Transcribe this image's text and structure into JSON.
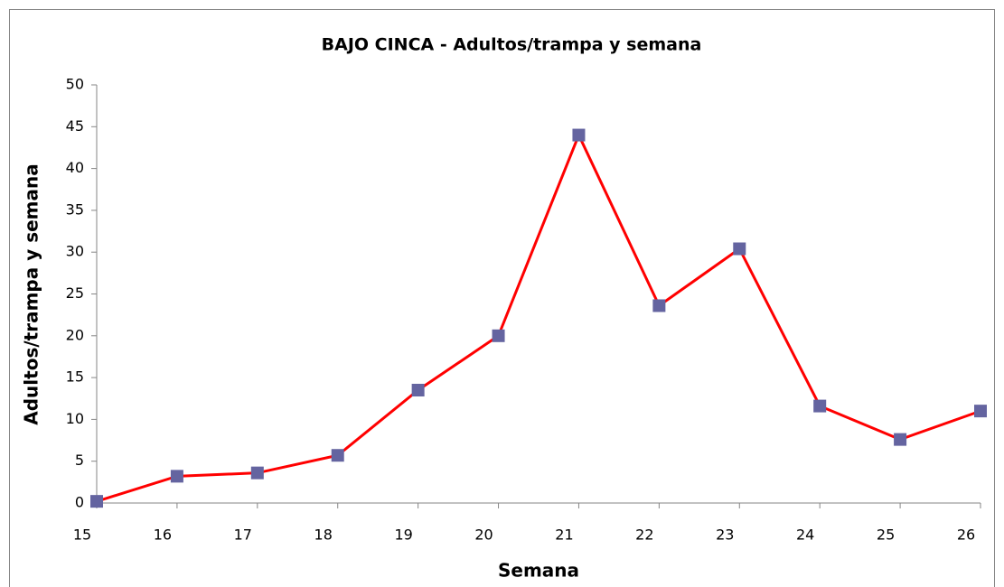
{
  "chart_data": {
    "type": "line",
    "title": "BAJO CINCA - Adultos/trampa y semana",
    "x_label": "Semana",
    "y_label": "Adultos/trampa y semana",
    "x": [
      15,
      16,
      17,
      18,
      19,
      20,
      21,
      22,
      23,
      24,
      25,
      26
    ],
    "values": [
      0.2,
      3.2,
      3.6,
      5.7,
      13.5,
      20,
      44,
      23.6,
      30.4,
      11.6,
      7.6,
      11
    ],
    "color": "#ff0000",
    "marker_color": "#6464a0",
    "marker": "square",
    "xlim": [
      15,
      26
    ],
    "xticks": [
      15,
      16,
      17,
      18,
      19,
      20,
      21,
      22,
      23,
      24,
      25,
      26
    ],
    "ylim": [
      0,
      50
    ],
    "yticks": [
      0,
      5,
      10,
      15,
      20,
      25,
      30,
      35,
      40,
      45,
      50
    ],
    "grid": false
  }
}
